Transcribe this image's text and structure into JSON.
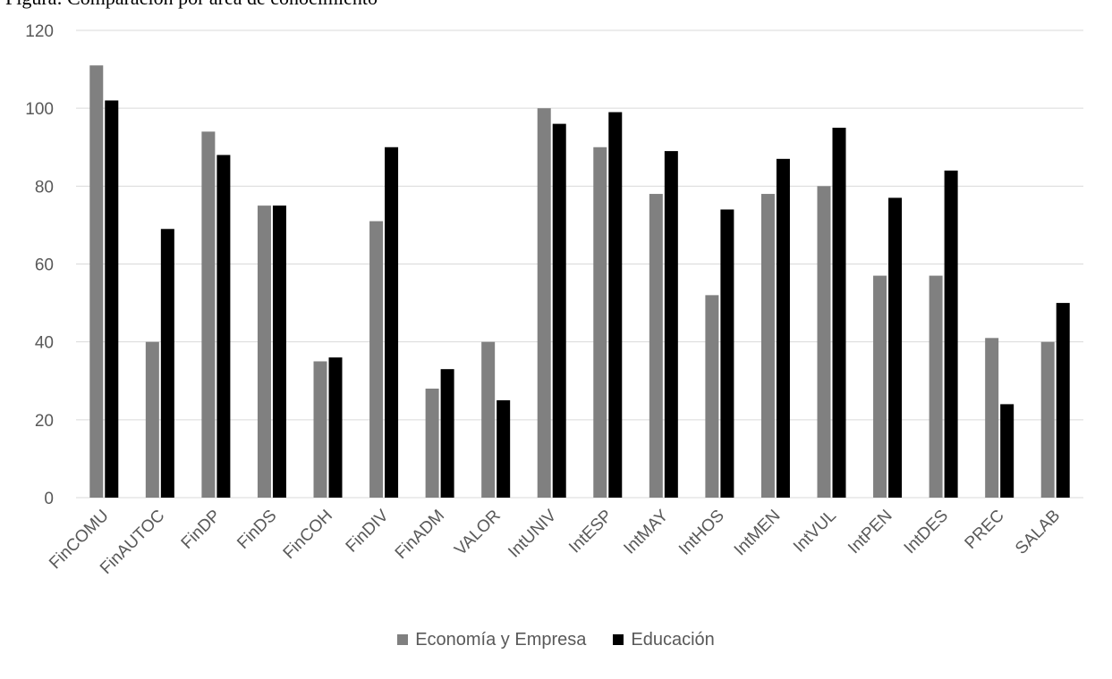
{
  "caption": "Figura: Comparación por área de conocimiento",
  "colors": {
    "economia": "#808080",
    "educacion": "#000000",
    "grid": "#d9d9d9",
    "axis_text": "#595959"
  },
  "chart_data": {
    "type": "bar",
    "title": "",
    "xlabel": "",
    "ylabel": "",
    "ylim": [
      0,
      120
    ],
    "yticks": [
      0,
      20,
      40,
      60,
      80,
      100,
      120
    ],
    "grid": true,
    "legend_position": "bottom",
    "categories": [
      "FinCOMU",
      "FinAUTOC",
      "FinDP",
      "FinDS",
      "FinCOH",
      "FinDIV",
      "FinADM",
      "VALOR",
      "IntUNIV",
      "IntESP",
      "IntMAY",
      "IntHOS",
      "IntMEN",
      "IntVUL",
      "IntPEN",
      "IntDES",
      "PREC",
      "SALAB"
    ],
    "series": [
      {
        "name": "Economía y Empresa",
        "color": "#808080",
        "values": [
          111,
          40,
          94,
          75,
          35,
          71,
          28,
          40,
          100,
          90,
          78,
          52,
          78,
          80,
          57,
          57,
          41,
          40
        ]
      },
      {
        "name": "Educación",
        "color": "#000000",
        "values": [
          102,
          69,
          88,
          75,
          36,
          90,
          33,
          25,
          96,
          99,
          89,
          74,
          87,
          95,
          77,
          84,
          24,
          50
        ]
      }
    ]
  }
}
